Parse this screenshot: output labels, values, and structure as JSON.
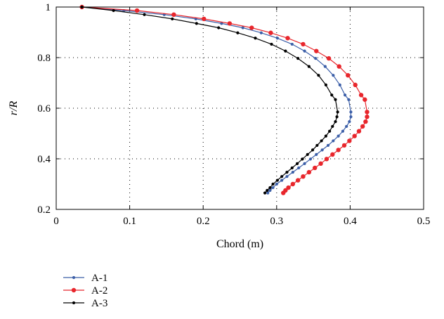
{
  "chart_data": {
    "type": "line",
    "title": "",
    "xlabel": "Chord (m)",
    "ylabel": "r/R",
    "xlim": [
      0,
      0.5
    ],
    "ylim": [
      0.2,
      1
    ],
    "xticks": [
      0,
      0.1,
      0.2,
      0.3,
      0.4,
      0.5
    ],
    "xtick_labels": [
      "0",
      "0.1",
      "0.2",
      "0.3",
      "0.4",
      "0.5"
    ],
    "yticks": [
      0.2,
      0.4,
      0.6,
      0.8,
      1.0
    ],
    "ytick_labels": [
      "0.2",
      "0.4",
      "0.6",
      "0.8",
      "1"
    ],
    "grid": true,
    "legend_position": "below-left",
    "series": [
      {
        "name": "A-1",
        "color": "#3c5fa8",
        "marker": "small-dot",
        "x": [
          0.288,
          0.291,
          0.295,
          0.3,
          0.307,
          0.314,
          0.322,
          0.33,
          0.338,
          0.346,
          0.354,
          0.362,
          0.37,
          0.377,
          0.384,
          0.39,
          0.395,
          0.399,
          0.401,
          0.401,
          0.398,
          0.393,
          0.386,
          0.377,
          0.366,
          0.353,
          0.338,
          0.321,
          0.301,
          0.279,
          0.254,
          0.225,
          0.19,
          0.147,
          0.092,
          0.035
        ],
        "y": [
          0.265,
          0.275,
          0.286,
          0.3,
          0.315,
          0.33,
          0.347,
          0.364,
          0.381,
          0.399,
          0.417,
          0.435,
          0.453,
          0.471,
          0.49,
          0.509,
          0.528,
          0.547,
          0.566,
          0.585,
          0.634,
          0.652,
          0.692,
          0.73,
          0.765,
          0.797,
          0.826,
          0.853,
          0.877,
          0.898,
          0.918,
          0.935,
          0.953,
          0.97,
          0.986,
          1.0
        ]
      },
      {
        "name": "A-2",
        "color": "#e8262c",
        "marker": "large-dot",
        "x": [
          0.309,
          0.312,
          0.316,
          0.322,
          0.329,
          0.336,
          0.344,
          0.352,
          0.36,
          0.368,
          0.376,
          0.384,
          0.392,
          0.399,
          0.406,
          0.412,
          0.417,
          0.421,
          0.423,
          0.423,
          0.42,
          0.415,
          0.407,
          0.397,
          0.385,
          0.371,
          0.354,
          0.336,
          0.315,
          0.292,
          0.266,
          0.236,
          0.201,
          0.16,
          0.11,
          0.035
        ],
        "y": [
          0.265,
          0.275,
          0.286,
          0.3,
          0.315,
          0.33,
          0.347,
          0.364,
          0.381,
          0.399,
          0.417,
          0.435,
          0.453,
          0.471,
          0.49,
          0.509,
          0.528,
          0.547,
          0.566,
          0.585,
          0.634,
          0.652,
          0.692,
          0.73,
          0.765,
          0.797,
          0.826,
          0.853,
          0.877,
          0.898,
          0.918,
          0.935,
          0.953,
          0.97,
          0.986,
          1.0
        ]
      },
      {
        "name": "A-3",
        "color": "#000000",
        "marker": "small-dot",
        "x": [
          0.284,
          0.287,
          0.291,
          0.295,
          0.301,
          0.307,
          0.314,
          0.321,
          0.328,
          0.335,
          0.342,
          0.349,
          0.355,
          0.361,
          0.367,
          0.372,
          0.376,
          0.38,
          0.382,
          0.383,
          0.38,
          0.375,
          0.367,
          0.357,
          0.344,
          0.329,
          0.312,
          0.293,
          0.271,
          0.247,
          0.221,
          0.191,
          0.158,
          0.12,
          0.078,
          0.035
        ],
        "y": [
          0.265,
          0.275,
          0.286,
          0.3,
          0.315,
          0.33,
          0.347,
          0.364,
          0.381,
          0.399,
          0.417,
          0.435,
          0.453,
          0.471,
          0.49,
          0.509,
          0.528,
          0.547,
          0.566,
          0.585,
          0.634,
          0.652,
          0.692,
          0.73,
          0.765,
          0.797,
          0.826,
          0.853,
          0.877,
          0.898,
          0.918,
          0.935,
          0.953,
          0.97,
          0.986,
          1.0
        ]
      }
    ]
  }
}
